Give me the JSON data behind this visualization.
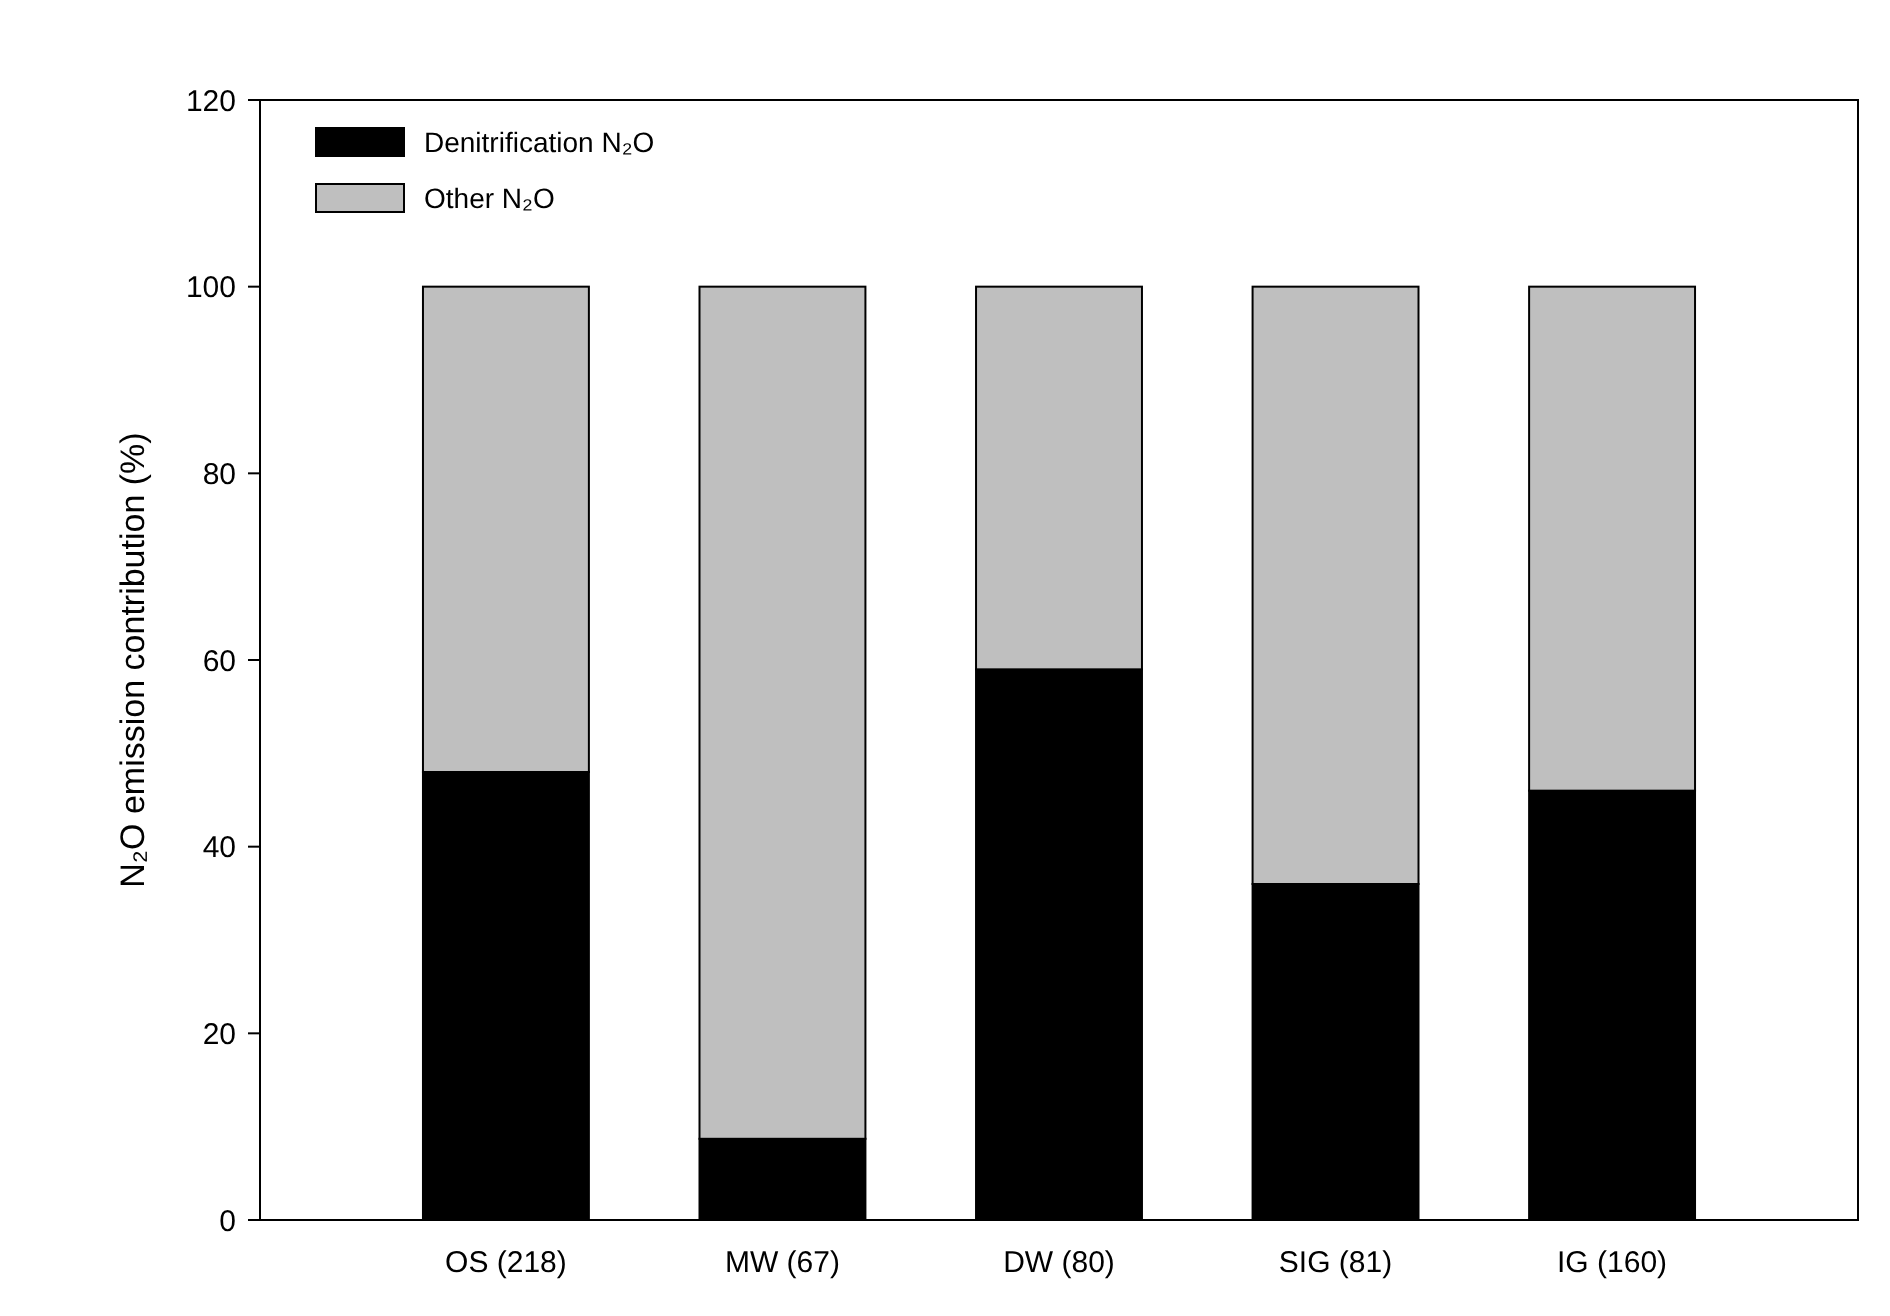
{
  "chart_data": {
    "type": "bar",
    "stacked": true,
    "ylabel": "N₂O emission contribution (%)",
    "categories": [
      "OS (218)",
      "MW (67)",
      "DW (80)",
      "SIG (81)",
      "IG (160)"
    ],
    "series": [
      {
        "name": "Denitrification N₂O",
        "color": "#000000",
        "values": [
          48,
          8.7,
          59,
          36,
          46
        ]
      },
      {
        "name": "Other N₂O",
        "color": "#bfbfbf",
        "values": [
          52,
          91.3,
          41,
          64,
          54
        ]
      }
    ],
    "ylim": [
      0,
      120
    ],
    "yticks": [
      0,
      20,
      40,
      60,
      80,
      100,
      120
    ],
    "grid": false,
    "legend": "top left"
  }
}
